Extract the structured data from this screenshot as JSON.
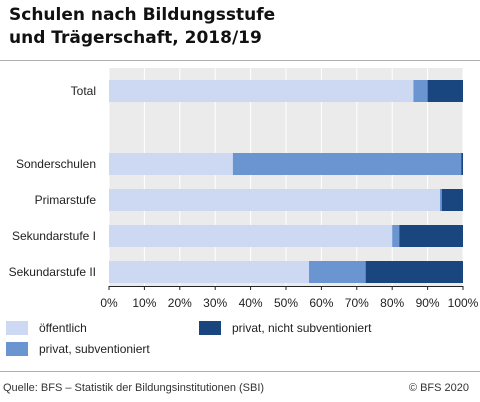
{
  "title_line1": "Schulen nach Bildungsstufe",
  "title_line2": "und Trägerschaft, 2018/19",
  "source": "Quelle: BFS – Statistik der Bildungsinstitutionen (SBI)",
  "copyright": "© BFS 2020",
  "chart_data": {
    "type": "bar",
    "orientation": "horizontal",
    "stacked": true,
    "categories": [
      "Total",
      "Sonderschulen",
      "Primarstufe",
      "Sekundarstufe I",
      "Sekundarstufe II"
    ],
    "series": [
      {
        "name": "öffentlich",
        "color": "#cdd9f2",
        "values": [
          86,
          35,
          93.5,
          80,
          56.5
        ]
      },
      {
        "name": "privat, subventioniert",
        "color": "#6b95d1",
        "values": [
          4,
          64.5,
          0.5,
          2,
          16
        ]
      },
      {
        "name": "privat, nicht subventioniert",
        "color": "#1a4680",
        "values": [
          10,
          0.5,
          6,
          18,
          27.5
        ]
      }
    ],
    "xlim": [
      0,
      100
    ],
    "xticks": [
      "0%",
      "10%",
      "20%",
      "30%",
      "40%",
      "50%",
      "60%",
      "70%",
      "80%",
      "90%",
      "100%"
    ],
    "grid": true,
    "legend_position": "bottom"
  }
}
